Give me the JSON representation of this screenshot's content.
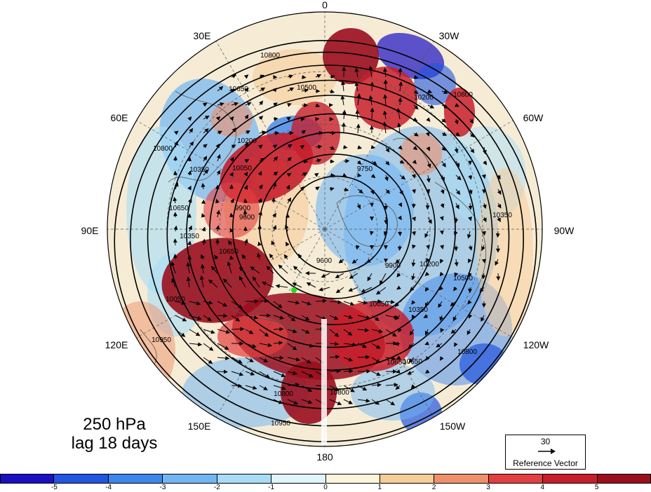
{
  "map": {
    "projection": "north-polar-stereographic",
    "longitude_labels": {
      "top": "0",
      "upper_left": "30E",
      "upper_right": "30W",
      "left_upper": "60E",
      "right_upper": "60W",
      "left": "90E",
      "right": "90W",
      "left_lower": "120E",
      "right_lower": "120W",
      "lower_left": "150E",
      "lower_right": "150W",
      "bottom": "180"
    },
    "contour_labels": [
      "10800",
      "10650",
      "10500",
      "10200",
      "10050",
      "9750",
      "10350",
      "10650",
      "10800",
      "9900",
      "9600",
      "10350",
      "9600",
      "9900",
      "10050",
      "10200",
      "10350",
      "10650",
      "10800",
      "10950",
      "10800",
      "10650",
      "10800",
      "10950",
      "10650",
      "10500",
      "10350",
      "10200",
      "10050",
      "10800"
    ],
    "marker_color": "#22dd22"
  },
  "caption": {
    "level": "250 hPa",
    "lag": "lag 18 days"
  },
  "reference_vector": {
    "value": "30",
    "label": "Reference Vector"
  },
  "colorbar": {
    "ticks": [
      "-5",
      "-4",
      "-3",
      "-2",
      "-1",
      "0",
      "1",
      "2",
      "3",
      "4",
      "5"
    ],
    "colors": [
      "#1a0fc2",
      "#2255e0",
      "#3d86ee",
      "#71b6f3",
      "#a8ddf7",
      "#dff5fb",
      "#fcf5de",
      "#f7cc98",
      "#ee906a",
      "#e23f3f",
      "#c81e2c",
      "#9a0e1e"
    ]
  }
}
